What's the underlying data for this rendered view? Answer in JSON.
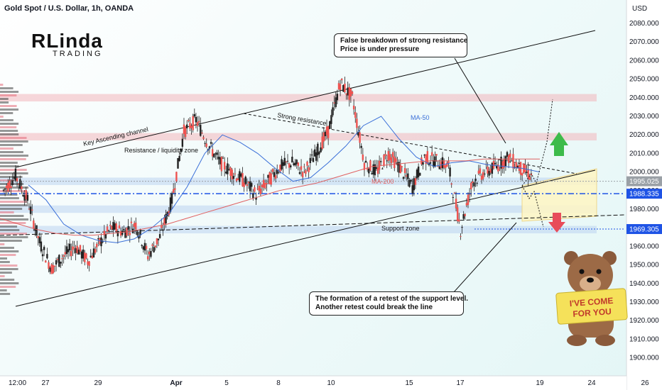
{
  "header": {
    "title": "Gold Spot / U.S. Dollar, 1h, OANDA"
  },
  "logo": {
    "main": "RLinda",
    "sub": "TRADING"
  },
  "chart_data": {
    "type": "line",
    "currency_label": "USD",
    "y_ticks": [
      1900,
      1910,
      1920,
      1930,
      1940,
      1950,
      1960,
      1970,
      1980,
      1990,
      2000,
      2010,
      2020,
      2030,
      2040,
      2050,
      2060,
      2070,
      2080
    ],
    "x_ticks": [
      "12:00",
      "27",
      "29",
      "Apr",
      "5",
      "8",
      "10",
      "15",
      "17",
      "19",
      "24",
      "26"
    ],
    "price_labels": [
      {
        "value": 1995.025,
        "text": "1995.025",
        "color": "#9aa0a6"
      },
      {
        "value": 1988.335,
        "text": "1988.335",
        "color": "#1e53e5"
      },
      {
        "value": 1969.305,
        "text": "1969.305",
        "color": "#1e53e5"
      }
    ],
    "zones": [
      {
        "from": 2038,
        "to": 2042,
        "color": "#f3b6bb"
      },
      {
        "from": 2017,
        "to": 2021,
        "color": "#f3b6bb"
      },
      {
        "from": 1993,
        "to": 1997,
        "color": "#bcd3f0"
      },
      {
        "from": 1978,
        "to": 1982,
        "color": "#bcd3f0"
      },
      {
        "from": 1967,
        "to": 1971,
        "color": "#bcd3f0"
      }
    ],
    "annotations": [
      {
        "text": "Key Ascending channel"
      },
      {
        "text": "Resistance / liquidity zone"
      },
      {
        "text": "Strong resistance"
      },
      {
        "text": "MA-50"
      },
      {
        "text": "MA-200"
      },
      {
        "text": "Support zone"
      }
    ],
    "series": [
      {
        "name": "MA-50",
        "color": "#3a6fd8",
        "values": [
          1993,
          1985,
          1972,
          1966,
          1963,
          1962,
          1964,
          1970,
          1978,
          1992,
          2010,
          2020,
          2016,
          2010,
          2002,
          1995,
          1997,
          2005,
          2014,
          2025,
          2030,
          2018,
          2008,
          2003,
          2005,
          2006,
          2004,
          2003,
          2002,
          2000
        ]
      },
      {
        "name": "MA-200",
        "color": "#e06060",
        "values": [
          1975,
          1972,
          1969,
          1967,
          1966,
          1966,
          1967,
          1968,
          1970,
          1972,
          1975,
          1978,
          1981,
          1984,
          1987,
          1990,
          1992,
          1994,
          1997,
          2000,
          2003,
          2004,
          2005,
          2006,
          2006,
          2006,
          2007,
          2007,
          2007,
          2007
        ]
      }
    ],
    "price_path": [
      1990,
      1998,
      1985,
      1962,
      1948,
      1955,
      1960,
      1952,
      1962,
      1970,
      1968,
      1972,
      1955,
      1965,
      1985,
      2022,
      2028,
      2015,
      2005,
      2000,
      1995,
      1988,
      1995,
      2003,
      2005,
      2000,
      2010,
      2022,
      2048,
      2040,
      2005,
      2000,
      2010,
      2002,
      1992,
      2008,
      2006,
      2003,
      1969,
      1995,
      2000,
      2003,
      2008,
      2002,
      1997
    ]
  },
  "callouts": {
    "top_line1": "False breakdown of strong resistance",
    "top_line2": "Price is under pressure",
    "bottom_line1": "The formation of a retest of the support level.",
    "bottom_line2": "Another retest could break the line"
  },
  "bear": {
    "sign_line1": "I'VE COME",
    "sign_line2": "FOR YOU"
  }
}
